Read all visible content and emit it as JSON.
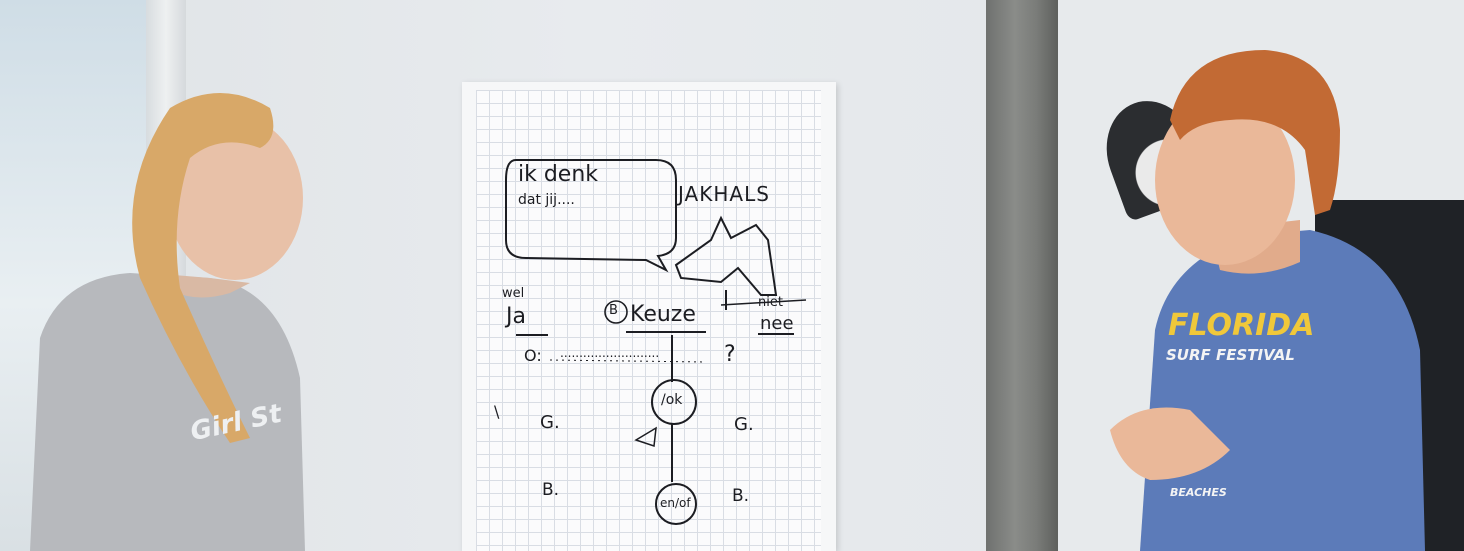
{
  "flipchart": {
    "speech_bubble_line1": "ik  denk",
    "speech_bubble_line2": "dat  jij....",
    "title": "JAKHALS",
    "left_top": "wel",
    "left_label": "Ja",
    "center_label": "Keuze",
    "center_circle": "B",
    "right_top": "niet",
    "right_label": "nee",
    "row_o": "O:",
    "row_o_dots": "..........................",
    "question_mark": "?",
    "node1": "/ok",
    "left_g": "G.",
    "right_g": "G.",
    "left_b": "B.",
    "right_b": "B.",
    "node2": "en/of",
    "tick": "\\"
  },
  "woman_shirt_text": "Girl St",
  "man_shirt": {
    "line1": "FLORIDA",
    "line2": "SURF FESTIVAL",
    "line3": "BEACHES"
  },
  "colors": {
    "marker": "#1c1d22",
    "tshirt_blue": "#5c7bb9",
    "florida_yellow": "#f0c83a",
    "woman_sweater": "#b7b9bd",
    "hair_blonde": "#d8a868",
    "hair_red": "#c26a34"
  }
}
